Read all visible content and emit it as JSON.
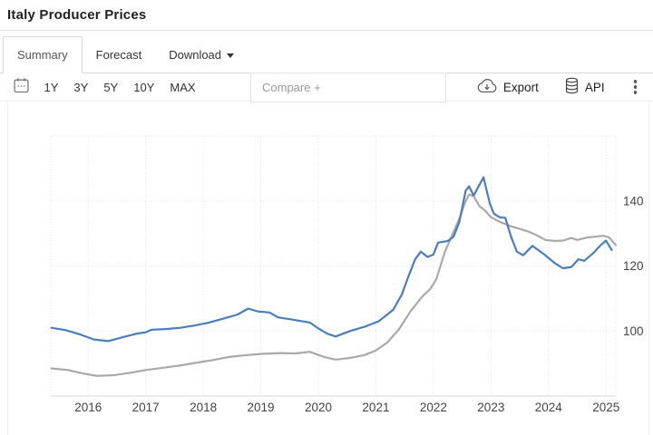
{
  "page": {
    "title": "Italy Producer Prices"
  },
  "tabs": [
    {
      "label": "Summary",
      "active": true
    },
    {
      "label": "Forecast",
      "active": false
    },
    {
      "label": "Download",
      "active": false,
      "has_caret": true
    }
  ],
  "toolbar": {
    "ranges": [
      "1Y",
      "3Y",
      "5Y",
      "10Y",
      "MAX"
    ],
    "compare_placeholder": "Compare +",
    "export_label": "Export",
    "api_label": "API"
  },
  "colors": {
    "line_blue": "#4a7ebd",
    "line_gray": "#a9a9a9",
    "grid": "#e3e3e3",
    "axis_text": "#444444",
    "icon_gray": "#666666"
  },
  "chart_data": {
    "type": "line",
    "title": "Italy Producer Prices",
    "grid": true,
    "legend": "none",
    "x_axis": {
      "range": [
        2015.35,
        2025.17
      ],
      "tick_values": [
        2016,
        2017,
        2018,
        2019,
        2020,
        2021,
        2022,
        2023,
        2024,
        2025
      ],
      "tick_labels": [
        "2016",
        "2017",
        "2018",
        "2019",
        "2020",
        "2021",
        "2022",
        "2023",
        "2024",
        "2025"
      ]
    },
    "y_axis": {
      "side": "right",
      "range": [
        80,
        160
      ],
      "tick_values": [
        100,
        120,
        140
      ],
      "tick_labels": [
        "100",
        "120",
        "140"
      ]
    },
    "series": [
      {
        "name": "gray-line",
        "color": "#a9a9a9",
        "x": [
          2015.36,
          2015.65,
          2015.9,
          2016.15,
          2016.45,
          2016.75,
          2017.0,
          2017.3,
          2017.6,
          2017.9,
          2018.15,
          2018.45,
          2018.75,
          2019.05,
          2019.35,
          2019.6,
          2019.85,
          2020.1,
          2020.3,
          2020.55,
          2020.8,
          2021.0,
          2021.2,
          2021.4,
          2021.6,
          2021.8,
          2021.95,
          2022.05,
          2022.2,
          2022.35,
          2022.45,
          2022.55,
          2022.62,
          2022.7,
          2022.8,
          2022.9,
          2023.0,
          2023.15,
          2023.35,
          2023.5,
          2023.65,
          2023.8,
          2023.95,
          2024.1,
          2024.25,
          2024.4,
          2024.5,
          2024.65,
          2024.8,
          2024.95,
          2025.05,
          2025.17
        ],
        "values": [
          88.5,
          88.0,
          87.0,
          86.2,
          86.4,
          87.2,
          88.0,
          88.7,
          89.4,
          90.3,
          91.0,
          92.0,
          92.6,
          93.0,
          93.2,
          93.1,
          93.6,
          92.0,
          91.2,
          91.7,
          92.6,
          94.0,
          96.5,
          100.5,
          106.0,
          110.5,
          113.0,
          116.0,
          124.4,
          130.5,
          134.5,
          139.5,
          142.0,
          141.5,
          138.4,
          137.0,
          135.0,
          133.6,
          132.2,
          131.4,
          130.6,
          129.4,
          128.0,
          127.7,
          127.8,
          128.6,
          128.0,
          128.7,
          129.0,
          129.3,
          128.8,
          126.4
        ]
      },
      {
        "name": "blue-line",
        "color": "#4a7ebd",
        "x": [
          2015.36,
          2015.6,
          2015.85,
          2016.1,
          2016.35,
          2016.6,
          2016.85,
          2017.0,
          2017.1,
          2017.35,
          2017.6,
          2017.85,
          2018.1,
          2018.35,
          2018.6,
          2018.78,
          2018.95,
          2019.15,
          2019.3,
          2019.55,
          2019.85,
          2020.0,
          2020.15,
          2020.3,
          2020.55,
          2020.8,
          2021.05,
          2021.3,
          2021.45,
          2021.55,
          2021.68,
          2021.78,
          2021.9,
          2022.0,
          2022.08,
          2022.25,
          2022.35,
          2022.45,
          2022.56,
          2022.62,
          2022.7,
          2022.87,
          2022.98,
          2023.05,
          2023.15,
          2023.25,
          2023.35,
          2023.45,
          2023.56,
          2023.72,
          2023.93,
          2024.1,
          2024.25,
          2024.4,
          2024.52,
          2024.62,
          2024.78,
          2024.9,
          2025.0,
          2025.1
        ],
        "values": [
          101.0,
          100.3,
          99.0,
          97.4,
          96.9,
          98.1,
          99.2,
          99.6,
          100.4,
          100.6,
          101.0,
          101.7,
          102.6,
          103.8,
          105.1,
          106.9,
          106.0,
          105.7,
          104.2,
          103.5,
          102.6,
          100.8,
          99.2,
          98.3,
          100.0,
          101.3,
          103.0,
          106.5,
          111.2,
          116.0,
          122.0,
          124.4,
          122.8,
          123.5,
          127.2,
          127.7,
          129.0,
          133.5,
          143.1,
          144.5,
          141.7,
          147.3,
          139.2,
          136.1,
          135.0,
          134.8,
          129.0,
          124.4,
          123.3,
          126.2,
          123.5,
          121.0,
          119.3,
          119.7,
          122.1,
          121.6,
          124.0,
          126.3,
          127.8,
          124.9
        ]
      }
    ]
  }
}
